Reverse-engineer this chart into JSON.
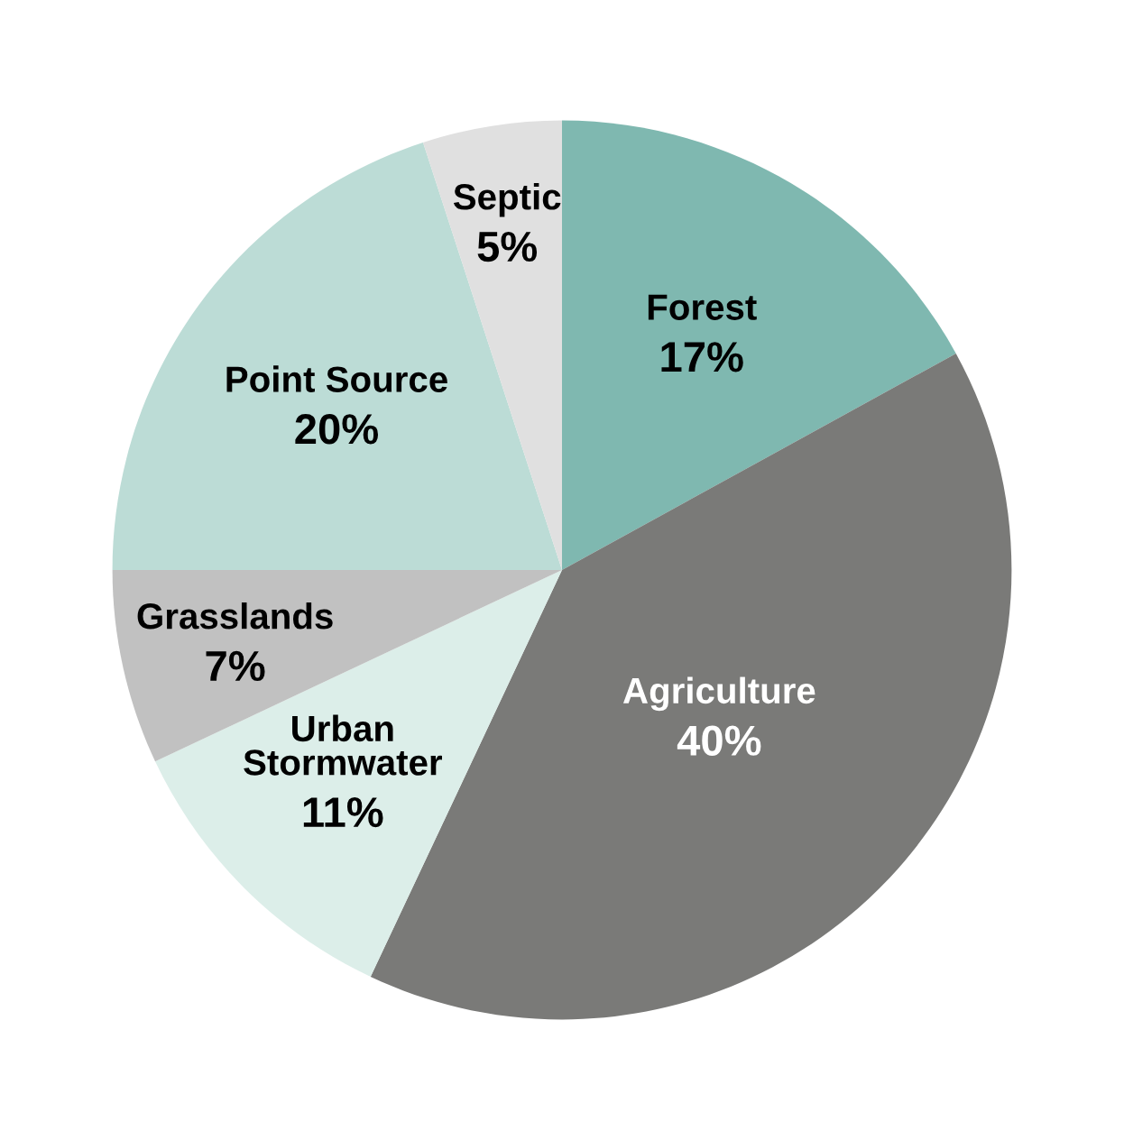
{
  "chart_data": {
    "type": "pie",
    "categories": [
      "Forest",
      "Agriculture",
      "Urban\nStormwater",
      "Grasslands",
      "Point Source",
      "Septic"
    ],
    "values": [
      17,
      40,
      11,
      7,
      20,
      5
    ],
    "value_labels": [
      "17%",
      "40%",
      "11%",
      "7%",
      "20%",
      "5%"
    ],
    "colors": [
      "#7fb8b0",
      "#7a7a78",
      "#dceee9",
      "#c1c1c1",
      "#bcdcd6",
      "#e0e0e0"
    ],
    "legend": false
  }
}
